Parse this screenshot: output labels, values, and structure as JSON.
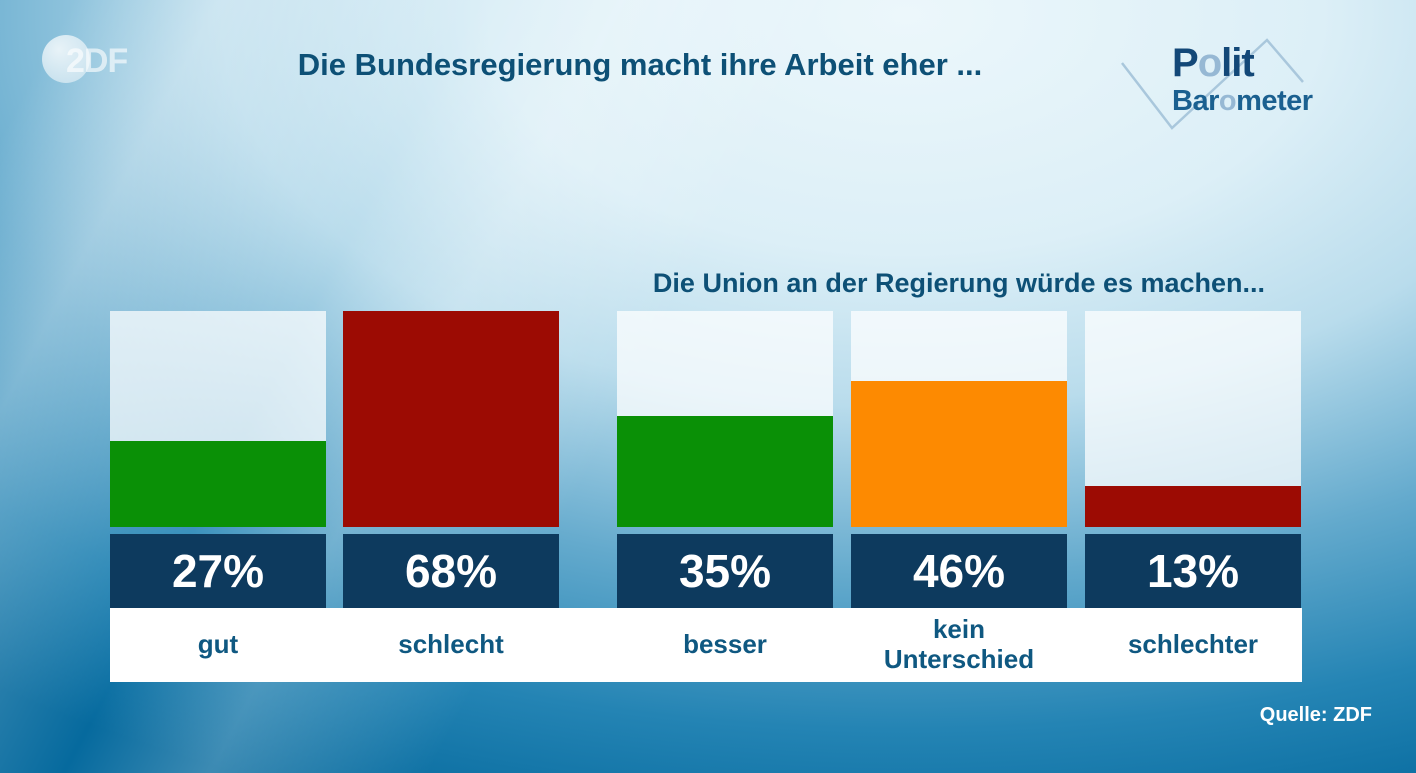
{
  "branding": {
    "zdf_watermark": "2DF",
    "politbarometer": {
      "word1_parts": [
        "P",
        "o",
        "lit"
      ],
      "word2_parts": [
        "Bar",
        "o",
        "meter"
      ],
      "dark_color": "#134878",
      "light_color": "#96b8d4"
    }
  },
  "chart_data": {
    "type": "bar",
    "title": "Die Bundesregierung macht ihre Arbeit eher ...",
    "subtitle_group2": "Die Union an der Regierung würde es machen...",
    "unit": "%",
    "scale_max": 68,
    "groups": [
      {
        "question": "Die Bundesregierung macht ihre Arbeit eher ...",
        "bars": [
          "gut",
          "schlecht"
        ]
      },
      {
        "question": "Die Union an der Regierung würde es machen...",
        "bars": [
          "besser",
          "kein Unterschied",
          "schlechter"
        ]
      }
    ],
    "bars": [
      {
        "label": "gut",
        "value": 27,
        "value_label": "27%",
        "color": "#0a9006"
      },
      {
        "label": "schlecht",
        "value": 68,
        "value_label": "68%",
        "color": "#9c0b03"
      },
      {
        "label": "besser",
        "value": 35,
        "value_label": "35%",
        "color": "#0a9006"
      },
      {
        "label": "kein\nUnterschied",
        "value": 46,
        "value_label": "46%",
        "color": "#fd8a01"
      },
      {
        "label": "schlechter",
        "value": 13,
        "value_label": "13%",
        "color": "#9c0b03"
      }
    ],
    "colors": {
      "value_box": "#0d3a5e",
      "track": "rgba(255,255,255,0.72)",
      "label_strip": "#ffffff",
      "title_text": "#0d5076",
      "background_bottom": "#066a9e"
    },
    "legend": "none",
    "grid": false,
    "source": "Quelle: ZDF"
  }
}
